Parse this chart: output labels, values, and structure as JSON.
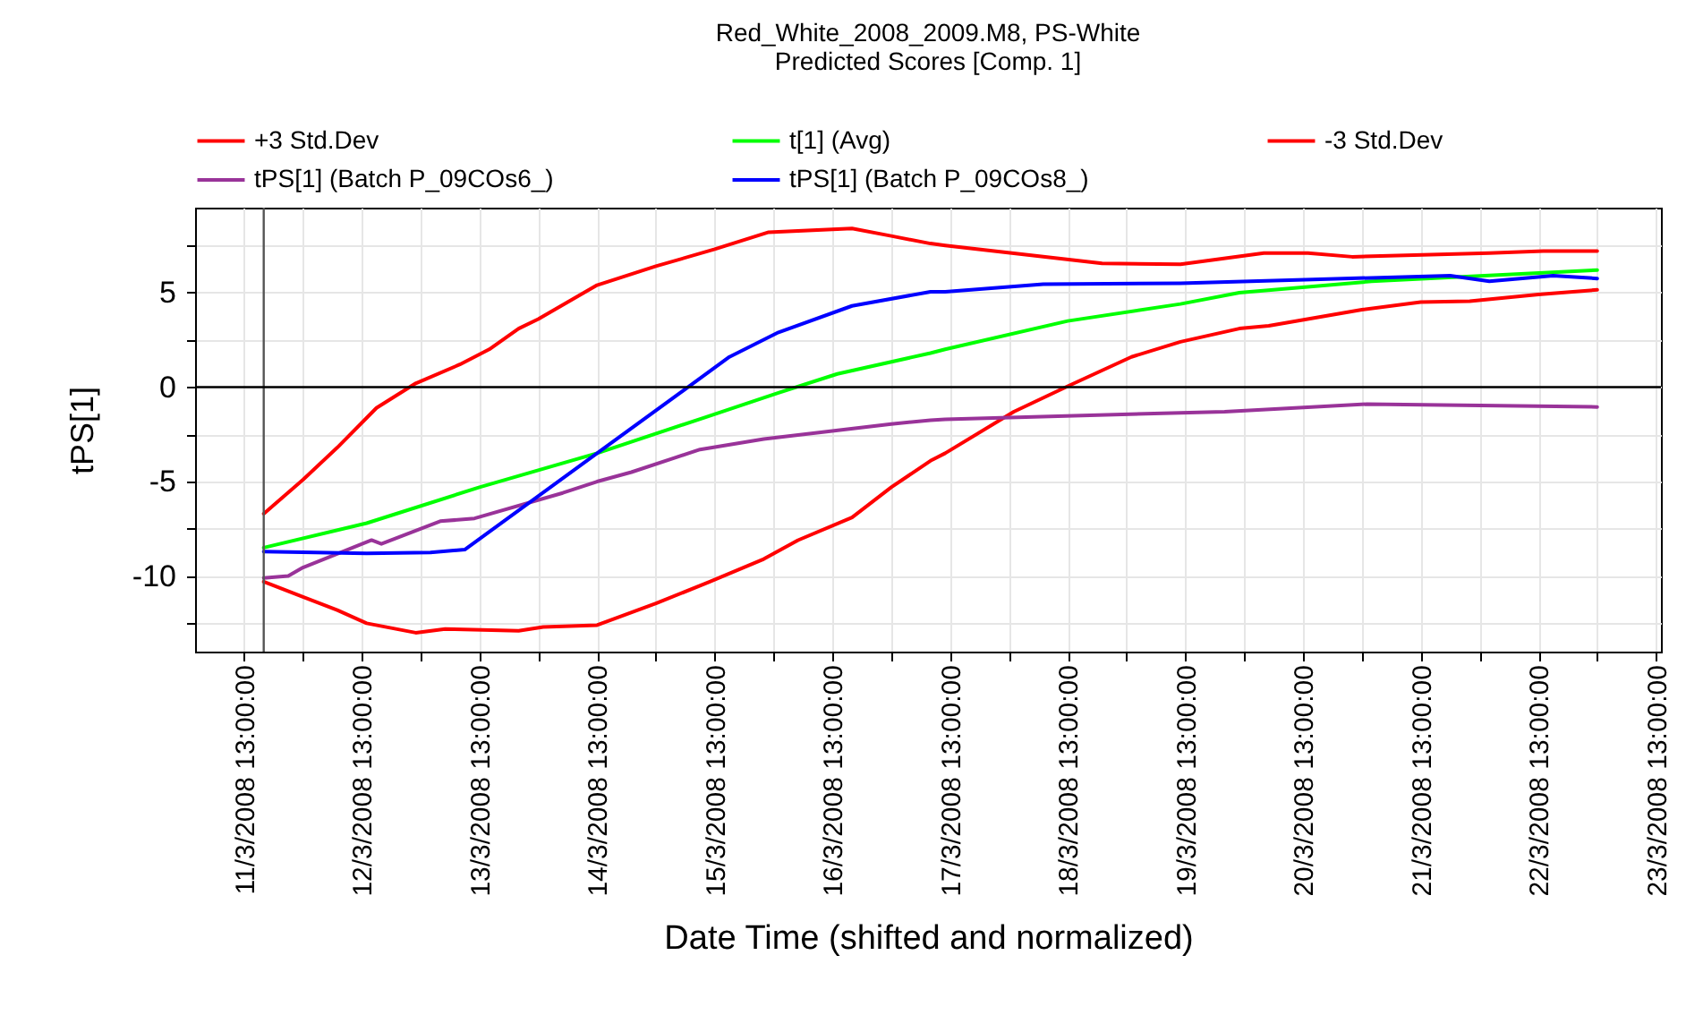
{
  "chart_data": {
    "type": "line",
    "title": "Red_White_2008_2009.M8, PS-White",
    "subtitle": "Predicted Scores [Comp. 1]",
    "xlabel": "Date Time (shifted and normalized)",
    "ylabel": "tPS[1]",
    "xlim": [
      "2008-03-11T03:00",
      "2008-03-23T14:00"
    ],
    "xticks": [
      {
        "value": "2008-03-11T13:00",
        "label": "11/3/2008 13:00:00"
      },
      {
        "value": "2008-03-12T01:00",
        "label": null
      },
      {
        "value": "2008-03-12T13:00",
        "label": "12/3/2008 13:00:00"
      },
      {
        "value": "2008-03-13T01:00",
        "label": null
      },
      {
        "value": "2008-03-13T13:00",
        "label": "13/3/2008 13:00:00"
      },
      {
        "value": "2008-03-14T01:00",
        "label": null
      },
      {
        "value": "2008-03-14T13:00",
        "label": "14/3/2008 13:00:00"
      },
      {
        "value": "2008-03-15T01:00",
        "label": null
      },
      {
        "value": "2008-03-15T13:00",
        "label": "15/3/2008 13:00:00"
      },
      {
        "value": "2008-03-16T01:00",
        "label": null
      },
      {
        "value": "2008-03-16T13:00",
        "label": "16/3/2008 13:00:00"
      },
      {
        "value": "2008-03-17T01:00",
        "label": null
      },
      {
        "value": "2008-03-17T13:00",
        "label": "17/3/2008 13:00:00"
      },
      {
        "value": "2008-03-18T01:00",
        "label": null
      },
      {
        "value": "2008-03-18T13:00",
        "label": "18/3/2008 13:00:00"
      },
      {
        "value": "2008-03-19T01:00",
        "label": null
      },
      {
        "value": "2008-03-19T13:00",
        "label": "19/3/2008 13:00:00"
      },
      {
        "value": "2008-03-20T01:00",
        "label": null
      },
      {
        "value": "2008-03-20T13:00",
        "label": "20/3/2008 13:00:00"
      },
      {
        "value": "2008-03-21T01:00",
        "label": null
      },
      {
        "value": "2008-03-21T13:00",
        "label": "21/3/2008 13:00:00"
      },
      {
        "value": "2008-03-22T01:00",
        "label": null
      },
      {
        "value": "2008-03-22T13:00",
        "label": "22/3/2008 13:00:00"
      },
      {
        "value": "2008-03-23T01:00",
        "label": null
      },
      {
        "value": "2008-03-23T13:00",
        "label": "23/3/2008 13:00:00"
      }
    ],
    "ylim": [
      -14,
      9.5
    ],
    "yticks": [
      {
        "value": -12.5,
        "label": null
      },
      -10,
      {
        "value": -7.5,
        "label": null
      },
      -5,
      {
        "value": -2.5,
        "label": null
      },
      0,
      {
        "value": 2.5,
        "label": null
      },
      5,
      {
        "value": 7.5,
        "label": null
      }
    ],
    "grid": true,
    "legend": "top",
    "line_style": "solid",
    "marker": "none",
    "ref_lines": [
      {
        "axis": "x",
        "value": "2008-03-11T17:00",
        "color": "#555555"
      },
      {
        "axis": "y",
        "value": 0,
        "color": "#000000"
      }
    ],
    "series": [
      {
        "name": "+3 Std.Dev",
        "color": "#ff0000",
        "x": [
          "2008-03-11T17:00",
          "2008-03-12T01:00",
          "2008-03-12T08:00",
          "2008-03-12T16:00",
          "2008-03-13T00:00",
          "2008-03-13T09:00",
          "2008-03-13T15:00",
          "2008-03-13T21:00",
          "2008-03-14T01:00",
          "2008-03-14T13:00",
          "2008-03-15T01:00",
          "2008-03-15T13:00",
          "2008-03-16T00:00",
          "2008-03-16T17:00",
          "2008-03-17T01:00",
          "2008-03-17T09:00",
          "2008-03-17T12:00",
          "2008-03-18T20:00",
          "2008-03-19T12:00",
          "2008-03-20T05:00",
          "2008-03-20T14:00",
          "2008-03-20T23:00",
          "2008-03-22T03:00",
          "2008-03-22T14:00",
          "2008-03-23T01:00"
        ],
        "values": [
          -6.7,
          -4.9,
          -3.2,
          -1.1,
          0.2,
          1.2,
          2.0,
          3.1,
          3.6,
          5.4,
          6.4,
          7.3,
          8.2,
          8.4,
          8.0,
          7.6,
          7.5,
          6.55,
          6.5,
          7.1,
          7.1,
          6.9,
          7.1,
          7.2,
          7.2
        ]
      },
      {
        "name": "t[1] (Avg)",
        "color": "#00ff00",
        "x": [
          "2008-03-11T17:00",
          "2008-03-12T14:00",
          "2008-03-13T13:00",
          "2008-03-14T13:00",
          "2008-03-15T11:00",
          "2008-03-16T02:00",
          "2008-03-16T14:00",
          "2008-03-17T09:00",
          "2008-03-17T12:00",
          "2008-03-18T13:00",
          "2008-03-19T12:00",
          "2008-03-20T00:00",
          "2008-03-21T03:00",
          "2008-03-23T01:00"
        ],
        "values": [
          -8.5,
          -7.2,
          -5.3,
          -3.5,
          -1.6,
          -0.3,
          0.7,
          1.8,
          2.0,
          3.5,
          4.4,
          5.0,
          5.6,
          6.2
        ]
      },
      {
        "name": "-3 Std.Dev",
        "color": "#ff0000",
        "x": [
          "2008-03-11T17:00",
          "2008-03-12T01:00",
          "2008-03-12T08:00",
          "2008-03-12T14:00",
          "2008-03-13T00:00",
          "2008-03-13T06:00",
          "2008-03-13T21:00",
          "2008-03-14T02:00",
          "2008-03-14T13:00",
          "2008-03-15T01:00",
          "2008-03-15T12:00",
          "2008-03-15T23:00",
          "2008-03-16T06:00",
          "2008-03-16T17:00",
          "2008-03-17T01:00",
          "2008-03-17T09:00",
          "2008-03-17T12:00",
          "2008-03-18T02:00",
          "2008-03-18T13:00",
          "2008-03-19T02:00",
          "2008-03-19T12:00",
          "2008-03-20T00:00",
          "2008-03-20T06:00",
          "2008-03-21T01:00",
          "2008-03-21T13:00",
          "2008-03-21T23:00",
          "2008-03-22T13:00",
          "2008-03-23T01:00"
        ],
        "values": [
          -10.3,
          -11.1,
          -11.8,
          -12.5,
          -13.0,
          -12.8,
          -12.9,
          -12.7,
          -12.6,
          -11.45,
          -10.3,
          -9.1,
          -8.1,
          -6.9,
          -5.3,
          -3.9,
          -3.5,
          -1.3,
          0.05,
          1.6,
          2.4,
          3.1,
          3.25,
          4.1,
          4.5,
          4.55,
          4.9,
          5.15
        ]
      },
      {
        "name": "tPS[1] (Batch P_09COs6_)",
        "color": "#993399",
        "x": [
          "2008-03-11T17:00",
          "2008-03-11T22:00",
          "2008-03-12T01:00",
          "2008-03-12T15:00",
          "2008-03-12T17:00",
          "2008-03-13T05:00",
          "2008-03-13T12:00",
          "2008-03-14T06:00",
          "2008-03-14T13:00",
          "2008-03-14T20:00",
          "2008-03-15T10:00",
          "2008-03-15T23:00",
          "2008-03-17T01:00",
          "2008-03-17T09:00",
          "2008-03-17T12:00",
          "2008-03-19T21:00",
          "2008-03-21T02:00",
          "2008-03-23T01:00"
        ],
        "values": [
          -10.1,
          -10.0,
          -9.55,
          -8.1,
          -8.3,
          -7.1,
          -6.95,
          -5.6,
          -5.0,
          -4.5,
          -3.3,
          -2.75,
          -1.95,
          -1.75,
          -1.7,
          -1.3,
          -0.9,
          -1.05
        ]
      },
      {
        "name": "tPS[1] (Batch P_09COs8_)",
        "color": "#0000ff",
        "x": [
          "2008-03-11T17:00",
          "2008-03-12T14:00",
          "2008-03-13T03:00",
          "2008-03-13T10:00",
          "2008-03-14T13:00",
          "2008-03-15T16:00",
          "2008-03-16T02:00",
          "2008-03-16T17:00",
          "2008-03-17T09:00",
          "2008-03-17T12:00",
          "2008-03-18T08:00",
          "2008-03-19T12:00",
          "2008-03-20T15:00",
          "2008-03-21T19:00",
          "2008-03-22T03:00",
          "2008-03-22T16:00",
          "2008-03-23T01:00"
        ],
        "values": [
          -8.7,
          -8.8,
          -8.75,
          -8.6,
          -3.5,
          1.6,
          2.9,
          4.3,
          5.05,
          5.05,
          5.45,
          5.5,
          5.7,
          5.9,
          5.6,
          5.9,
          5.75
        ]
      }
    ]
  }
}
